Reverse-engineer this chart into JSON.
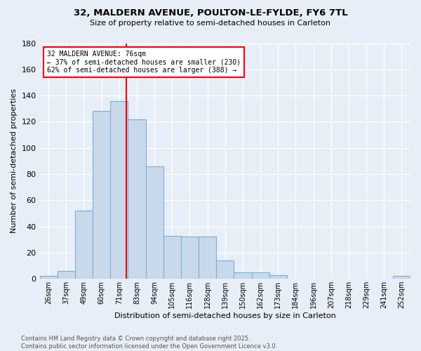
{
  "title1": "32, MALDERN AVENUE, POULTON-LE-FYLDE, FY6 7TL",
  "title2": "Size of property relative to semi-detached houses in Carleton",
  "xlabel": "Distribution of semi-detached houses by size in Carleton",
  "ylabel": "Number of semi-detached properties",
  "footer1": "Contains HM Land Registry data © Crown copyright and database right 2025.",
  "footer2": "Contains public sector information licensed under the Open Government Licence v3.0.",
  "bin_labels": [
    "26sqm",
    "37sqm",
    "49sqm",
    "60sqm",
    "71sqm",
    "83sqm",
    "94sqm",
    "105sqm",
    "116sqm",
    "128sqm",
    "139sqm",
    "150sqm",
    "162sqm",
    "173sqm",
    "184sqm",
    "196sqm",
    "207sqm",
    "218sqm",
    "229sqm",
    "241sqm",
    "252sqm"
  ],
  "bin_values": [
    2,
    6,
    52,
    128,
    136,
    122,
    86,
    33,
    32,
    32,
    14,
    5,
    5,
    3,
    0,
    0,
    0,
    0,
    0,
    0,
    2
  ],
  "bar_color": "#c9d9ec",
  "bar_edge_color": "#7aaed6",
  "vline_color": "red",
  "annotation_title": "32 MALDERN AVENUE: 76sqm",
  "annotation_line1": "← 37% of semi-detached houses are smaller (230)",
  "annotation_line2": "62% of semi-detached houses are larger (388) →",
  "annotation_box_color": "white",
  "annotation_box_edge": "red",
  "ylim": [
    0,
    180
  ],
  "yticks": [
    0,
    20,
    40,
    60,
    80,
    100,
    120,
    140,
    160,
    180
  ],
  "bg_color": "#e8eef7",
  "plot_bg_color": "#e8eef7",
  "bin_edges": [
    26,
    37,
    49,
    60,
    71,
    83,
    94,
    105,
    116,
    128,
    139,
    150,
    162,
    173,
    184,
    196,
    207,
    218,
    229,
    241,
    252
  ],
  "prop_size": 76
}
